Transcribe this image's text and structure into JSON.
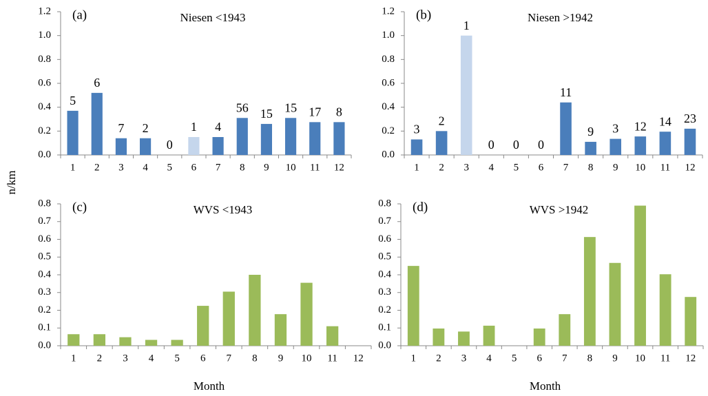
{
  "y_label": "n/km",
  "chart_data": [
    {
      "type": "bar",
      "panel_label": "(a)",
      "title": "Niesen <1943",
      "categories": [
        "1",
        "2",
        "3",
        "4",
        "5",
        "6",
        "7",
        "8",
        "9",
        "10",
        "11",
        "12"
      ],
      "values": [
        0.37,
        0.52,
        0.14,
        0.14,
        0,
        0.15,
        0.15,
        0.31,
        0.26,
        0.31,
        0.275,
        0.275
      ],
      "bar_annotations": [
        "5",
        "6",
        "7",
        "2",
        "0",
        "1",
        "4",
        "56",
        "15",
        "15",
        "17",
        "8"
      ],
      "colors": [
        "#4a7ebb",
        "#4a7ebb",
        "#4a7ebb",
        "#4a7ebb",
        "#4a7ebb",
        "#c5d6ec",
        "#4a7ebb",
        "#4a7ebb",
        "#4a7ebb",
        "#4a7ebb",
        "#4a7ebb",
        "#4a7ebb"
      ],
      "ylim": [
        0,
        1.2
      ],
      "yticks": [
        {
          "value": 0,
          "label": "0.0"
        },
        0.2,
        0.4,
        0.6,
        0.8,
        {
          "value": 1,
          "label": "1.0"
        },
        1.2
      ]
    },
    {
      "type": "bar",
      "panel_label": "(b)",
      "title": "Niesen >1942",
      "categories": [
        "1",
        "2",
        "3",
        "4",
        "5",
        "6",
        "7",
        "8",
        "9",
        "10",
        "11",
        "12"
      ],
      "values": [
        0.13,
        0.2,
        1.0,
        0,
        0,
        0,
        0.44,
        0.11,
        0.135,
        0.155,
        0.195,
        0.22
      ],
      "bar_annotations": [
        "3",
        "2",
        "1",
        "0",
        "0",
        "0",
        "11",
        "9",
        "3",
        "12",
        "14",
        "23"
      ],
      "colors": [
        "#4a7ebb",
        "#4a7ebb",
        "#c5d6ec",
        "#4a7ebb",
        "#4a7ebb",
        "#4a7ebb",
        "#4a7ebb",
        "#4a7ebb",
        "#4a7ebb",
        "#4a7ebb",
        "#4a7ebb",
        "#4a7ebb"
      ],
      "ylim": [
        0,
        1.2
      ],
      "yticks": [
        {
          "value": 0,
          "label": "0.0"
        },
        0.2,
        0.4,
        0.6,
        0.8,
        {
          "value": 1,
          "label": "1.0"
        },
        1.2
      ]
    },
    {
      "type": "bar",
      "panel_label": "(c)",
      "title": "WVS <1943",
      "xlabel": "Month",
      "categories": [
        "1",
        "2",
        "3",
        "4",
        "5",
        "6",
        "7",
        "8",
        "9",
        "10",
        "11",
        "12"
      ],
      "values": [
        0.065,
        0.065,
        0.048,
        0.033,
        0.033,
        0.225,
        0.305,
        0.4,
        0.178,
        0.355,
        0.11,
        0
      ],
      "color": "#9bbb59",
      "ylim": [
        0,
        0.8
      ],
      "yticks": [
        {
          "value": 0,
          "label": "0.0"
        },
        0.1,
        0.2,
        0.3,
        0.4,
        0.5,
        0.6,
        0.7,
        0.8
      ]
    },
    {
      "type": "bar",
      "panel_label": "(d)",
      "title": "WVS >1942",
      "xlabel": "Month",
      "categories": [
        "1",
        "2",
        "3",
        "4",
        "5",
        "6",
        "7",
        "8",
        "9",
        "10",
        "11",
        "12"
      ],
      "values": [
        0.45,
        0.097,
        0.08,
        0.113,
        0,
        0.097,
        0.178,
        0.613,
        0.467,
        0.79,
        0.403,
        0.275
      ],
      "color": "#9bbb59",
      "ylim": [
        0,
        0.8
      ],
      "yticks": [
        {
          "value": 0,
          "label": "0.0"
        },
        0.1,
        0.2,
        0.3,
        0.4,
        0.5,
        0.6,
        0.7,
        0.8
      ]
    }
  ]
}
